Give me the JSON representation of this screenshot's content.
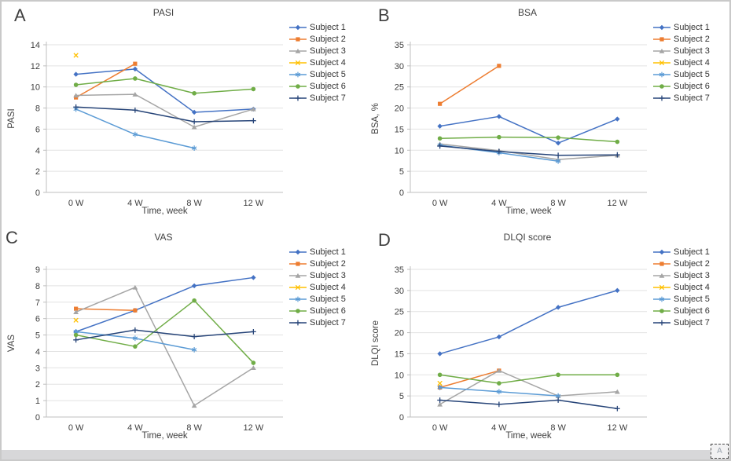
{
  "frame": {
    "corner_label": "A"
  },
  "chart_data": [
    {
      "type": "line",
      "panel_label": "A",
      "title": "PASI",
      "xlabel": "Time, week",
      "ylabel": "PASI",
      "ylim": [
        0,
        14
      ],
      "yticks": [
        0,
        2,
        4,
        6,
        8,
        10,
        12,
        14
      ],
      "categories": [
        "0 W",
        "4 W",
        "8 W",
        "12 W"
      ],
      "grid": true,
      "legend_position": "right",
      "series": [
        {
          "name": "Subject 1",
          "color": "#4472C4",
          "marker": "diamond",
          "values": [
            11.2,
            11.7,
            7.6,
            7.9
          ]
        },
        {
          "name": "Subject 2",
          "color": "#ED7D31",
          "marker": "square",
          "values": [
            9.0,
            12.2,
            null,
            null
          ]
        },
        {
          "name": "Subject 3",
          "color": "#A5A5A5",
          "marker": "triangle",
          "values": [
            9.2,
            9.3,
            6.2,
            7.9
          ]
        },
        {
          "name": "Subject 4",
          "color": "#FFC000",
          "marker": "x",
          "values": [
            13.0,
            null,
            null,
            null
          ]
        },
        {
          "name": "Subject 5",
          "color": "#5B9BD5",
          "marker": "asterisk",
          "values": [
            7.9,
            5.5,
            4.2,
            null
          ]
        },
        {
          "name": "Subject 6",
          "color": "#70AD47",
          "marker": "circle",
          "values": [
            10.2,
            10.8,
            9.4,
            9.8
          ]
        },
        {
          "name": "Subject 7",
          "color": "#264478",
          "marker": "plus",
          "values": [
            8.1,
            7.8,
            6.7,
            6.8
          ]
        }
      ]
    },
    {
      "type": "line",
      "panel_label": "B",
      "title": "BSA",
      "xlabel": "Time, week",
      "ylabel": "BSA, %",
      "ylim": [
        0,
        35
      ],
      "yticks": [
        0,
        5,
        10,
        15,
        20,
        25,
        30,
        35
      ],
      "categories": [
        "0 W",
        "4 W",
        "8 W",
        "12 W"
      ],
      "grid": true,
      "legend_position": "right",
      "series": [
        {
          "name": "Subject 1",
          "color": "#4472C4",
          "marker": "diamond",
          "values": [
            15.7,
            18.0,
            11.7,
            17.4
          ]
        },
        {
          "name": "Subject 2",
          "color": "#ED7D31",
          "marker": "square",
          "values": [
            21.0,
            30.0,
            null,
            null
          ]
        },
        {
          "name": "Subject 3",
          "color": "#A5A5A5",
          "marker": "triangle",
          "values": [
            11.5,
            9.9,
            7.8,
            8.8
          ]
        },
        {
          "name": "Subject 4",
          "color": "#FFC000",
          "marker": "x",
          "values": [
            null,
            null,
            null,
            null
          ]
        },
        {
          "name": "Subject 5",
          "color": "#5B9BD5",
          "marker": "asterisk",
          "values": [
            11.2,
            9.4,
            7.4,
            null
          ]
        },
        {
          "name": "Subject 6",
          "color": "#70AD47",
          "marker": "circle",
          "values": [
            12.8,
            13.1,
            13.0,
            12.0
          ]
        },
        {
          "name": "Subject 7",
          "color": "#264478",
          "marker": "plus",
          "values": [
            11.0,
            9.7,
            8.8,
            8.9
          ]
        }
      ]
    },
    {
      "type": "line",
      "panel_label": "C",
      "title": "VAS",
      "xlabel": "Time, week",
      "ylabel": "VAS",
      "ylim": [
        0,
        9
      ],
      "yticks": [
        0,
        1,
        2,
        3,
        4,
        5,
        6,
        7,
        8,
        9
      ],
      "categories": [
        "0 W",
        "4 W",
        "8 W",
        "12 W"
      ],
      "grid": true,
      "legend_position": "right",
      "series": [
        {
          "name": "Subject 1",
          "color": "#4472C4",
          "marker": "diamond",
          "values": [
            5.2,
            6.5,
            8.0,
            8.5
          ]
        },
        {
          "name": "Subject 2",
          "color": "#ED7D31",
          "marker": "square",
          "values": [
            6.6,
            6.5,
            null,
            null
          ]
        },
        {
          "name": "Subject 3",
          "color": "#A5A5A5",
          "marker": "triangle",
          "values": [
            6.4,
            7.9,
            0.7,
            3.0
          ]
        },
        {
          "name": "Subject 4",
          "color": "#FFC000",
          "marker": "x",
          "values": [
            5.9,
            null,
            null,
            null
          ]
        },
        {
          "name": "Subject 5",
          "color": "#5B9BD5",
          "marker": "asterisk",
          "values": [
            5.2,
            4.8,
            4.1,
            null
          ]
        },
        {
          "name": "Subject 6",
          "color": "#70AD47",
          "marker": "circle",
          "values": [
            5.0,
            4.3,
            7.1,
            3.3
          ]
        },
        {
          "name": "Subject 7",
          "color": "#264478",
          "marker": "plus",
          "values": [
            4.7,
            5.3,
            4.9,
            5.2
          ]
        }
      ]
    },
    {
      "type": "line",
      "panel_label": "D",
      "title": "DLQI score",
      "xlabel": "Time, week",
      "ylabel": "DLQI score",
      "ylim": [
        0,
        35
      ],
      "yticks": [
        0,
        5,
        10,
        15,
        20,
        25,
        30,
        35
      ],
      "categories": [
        "0 W",
        "4 W",
        "8 W",
        "12 W"
      ],
      "grid": true,
      "legend_position": "right",
      "series": [
        {
          "name": "Subject 1",
          "color": "#4472C4",
          "marker": "diamond",
          "values": [
            15,
            19,
            26,
            30
          ]
        },
        {
          "name": "Subject 2",
          "color": "#ED7D31",
          "marker": "square",
          "values": [
            7,
            11,
            null,
            null
          ]
        },
        {
          "name": "Subject 3",
          "color": "#A5A5A5",
          "marker": "triangle",
          "values": [
            3,
            11,
            5,
            6
          ]
        },
        {
          "name": "Subject 4",
          "color": "#FFC000",
          "marker": "x",
          "values": [
            8,
            null,
            null,
            null
          ]
        },
        {
          "name": "Subject 5",
          "color": "#5B9BD5",
          "marker": "asterisk",
          "values": [
            7,
            6,
            5,
            null
          ]
        },
        {
          "name": "Subject 6",
          "color": "#70AD47",
          "marker": "circle",
          "values": [
            10,
            8,
            10,
            10
          ]
        },
        {
          "name": "Subject 7",
          "color": "#264478",
          "marker": "plus",
          "values": [
            4,
            3,
            4,
            2
          ]
        }
      ]
    }
  ]
}
